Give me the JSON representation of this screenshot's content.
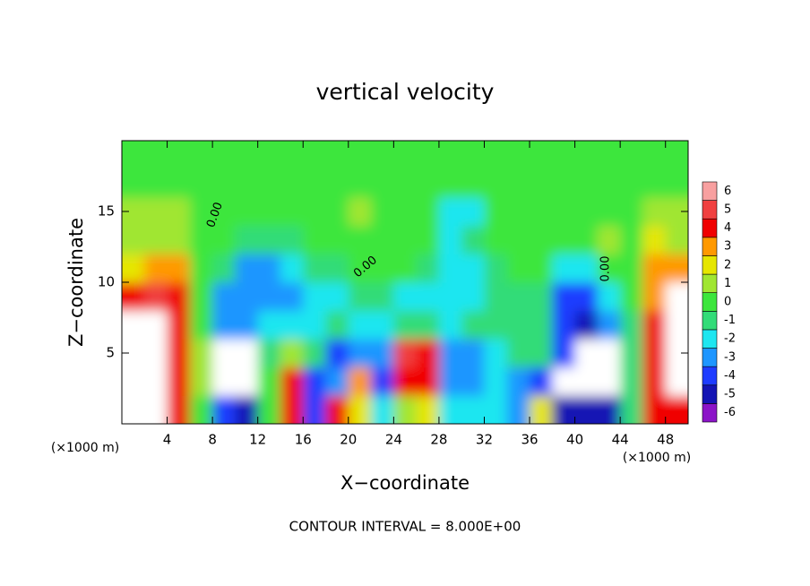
{
  "chart_data": {
    "type": "heatmap",
    "title": "vertical velocity",
    "xlabel": "X−coordinate",
    "ylabel": "Z−coordinate",
    "x_unit_left": "(×1000 m)",
    "x_unit_right": "(×1000 m)",
    "footnote": "CONTOUR INTERVAL = 8.000E+00",
    "contour_labels": [
      "0.00",
      "0.00",
      "0.00"
    ],
    "xlim": [
      0,
      50
    ],
    "ylim": [
      0,
      20
    ],
    "xticks": [
      4,
      8,
      12,
      16,
      20,
      24,
      28,
      32,
      36,
      40,
      44,
      48
    ],
    "yticks": [
      5,
      10,
      15
    ],
    "x": [
      1,
      3,
      5,
      7,
      9,
      11,
      13,
      15,
      17,
      19,
      21,
      23,
      25,
      27,
      29,
      31,
      33,
      35,
      37,
      39,
      41,
      43,
      45,
      47,
      49
    ],
    "y": [
      1,
      3,
      5,
      7,
      9,
      11,
      13,
      15,
      17,
      19
    ],
    "values": [
      [
        7,
        7,
        4,
        0,
        -4,
        -5,
        0,
        4,
        -4,
        4,
        2,
        -2,
        1,
        2,
        -2,
        -2,
        -2,
        -3,
        2,
        -5,
        -5,
        -5,
        -1,
        4,
        4
      ],
      [
        7,
        7,
        4,
        1,
        -7,
        -7,
        0,
        4,
        -4,
        -3,
        3,
        -4,
        4,
        4,
        -3,
        -3,
        -2,
        -3,
        -4,
        -7,
        -7,
        -7,
        -1,
        4,
        7
      ],
      [
        7,
        7,
        4,
        1,
        -7,
        -7,
        -1,
        1,
        -1,
        -4,
        -3,
        -3,
        5,
        4,
        -3,
        -3,
        -2,
        -1,
        -1,
        -4,
        -7,
        -7,
        -1,
        4,
        7
      ],
      [
        7,
        7,
        4,
        0,
        -3,
        -3,
        -2,
        -2,
        -2,
        -1,
        -2,
        -2,
        -1,
        -1,
        -2,
        -1,
        -1,
        -1,
        -1,
        -4,
        -5,
        -3,
        -1,
        4,
        7
      ],
      [
        4,
        5,
        4,
        0,
        -3,
        -3,
        -3,
        -3,
        -2,
        -2,
        -1,
        -1,
        -2,
        -2,
        -2,
        -2,
        -1,
        -1,
        -1,
        -4,
        -4,
        -2,
        0,
        3,
        7
      ],
      [
        2,
        3,
        3,
        0,
        -1,
        -3,
        -3,
        -2,
        -1,
        -1,
        0,
        0,
        0,
        -1,
        -2,
        -2,
        -1,
        0,
        0,
        -2,
        -2,
        0,
        0,
        3,
        3
      ],
      [
        1,
        1,
        1,
        0,
        0,
        -1,
        -1,
        -1,
        0,
        0,
        0,
        0,
        0,
        0,
        -2,
        -1,
        0,
        0,
        0,
        0,
        0,
        1,
        0,
        2,
        1
      ],
      [
        1,
        1,
        1,
        0,
        0,
        0,
        0,
        0,
        0,
        0,
        1,
        0,
        0,
        0,
        -2,
        -2,
        0,
        0,
        0,
        0,
        0,
        0,
        0,
        1,
        1
      ],
      [
        0,
        0,
        0,
        0,
        0,
        0,
        0,
        0,
        0,
        0,
        0,
        0,
        0,
        0,
        0,
        0,
        0,
        0,
        0,
        0,
        0,
        0,
        0,
        0,
        0
      ],
      [
        0,
        0,
        0,
        0,
        0,
        0,
        0,
        0,
        0,
        0,
        0,
        0,
        0,
        0,
        0,
        0,
        0,
        0,
        0,
        0,
        0,
        0,
        0,
        0,
        0
      ]
    ],
    "colorbar": {
      "levels": [
        -6,
        -5,
        -4,
        -3,
        -2,
        -1,
        0,
        1,
        2,
        3,
        4,
        5,
        6
      ],
      "colors": [
        "#8c14c8",
        "#1414b4",
        "#1e3cff",
        "#1e96ff",
        "#1ee6f0",
        "#32dc78",
        "#3ce63c",
        "#a0e632",
        "#e6e600",
        "#ff9900",
        "#f00000",
        "#f04040",
        "#f8a0a0"
      ],
      "over_color": "#ffffff",
      "under_color": "#ffffff"
    }
  }
}
